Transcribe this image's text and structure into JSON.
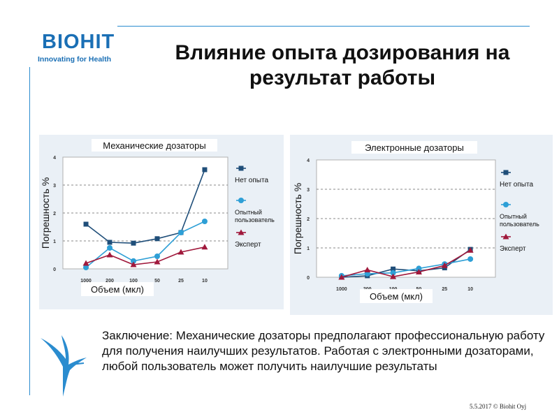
{
  "logo": {
    "name": "BIOHIT",
    "tagline": "Innovating for Health"
  },
  "slide": {
    "title": "Влияние опыта дозирования на результат работы",
    "conclusion": "Заключение: Механические дозаторы предполагают профессиональную работу для получения наилучших результатов. Работая с электронными дозаторами, любой пользователь может получить наилучшие результаты",
    "footer": "5.5.2017 © Biohit Oyj"
  },
  "colors": {
    "accent": "#2a8ccf",
    "series_dark": "#1f4e79",
    "series_light": "#2e9fd6",
    "series_red": "#a0193c",
    "panel": "#eaf0f6"
  },
  "chart_data": [
    {
      "type": "line",
      "title": "Механические дозаторы",
      "xlabel": "Объем (мкл)",
      "ylabel": "Погрешность %",
      "categories": [
        "1000",
        "200",
        "100",
        "50",
        "25",
        "10"
      ],
      "ylim": [
        0,
        4
      ],
      "yticks": [
        "0",
        "1",
        "2",
        "3",
        "4"
      ],
      "grid": "dashed",
      "series": [
        {
          "name": "Нет опыта",
          "marker": "square",
          "values": [
            1.6,
            0.95,
            0.92,
            1.08,
            1.3,
            3.55
          ]
        },
        {
          "name": "Опытный пользователь",
          "marker": "circle",
          "values": [
            0.05,
            0.75,
            0.28,
            0.45,
            1.3,
            1.7
          ]
        },
        {
          "name": "Эксперт",
          "marker": "triangle",
          "values": [
            0.2,
            0.5,
            0.15,
            0.25,
            0.6,
            0.78
          ]
        }
      ]
    },
    {
      "type": "line",
      "title": "Электронные дозаторы",
      "xlabel": "Объем (мкл)",
      "ylabel": "Погрешность %",
      "categories": [
        "1000",
        "200",
        "100",
        "50",
        "25",
        "10"
      ],
      "ylim": [
        0,
        4
      ],
      "yticks": [
        "0",
        "1",
        "2",
        "3",
        "4"
      ],
      "grid": "dashed",
      "series": [
        {
          "name": "Нет опыта",
          "marker": "square",
          "values": [
            0.0,
            0.05,
            0.28,
            0.22,
            0.32,
            0.95
          ]
        },
        {
          "name": "Опытный пользователь",
          "marker": "circle",
          "values": [
            0.05,
            0.12,
            0.15,
            0.3,
            0.45,
            0.62
          ]
        },
        {
          "name": "Эксперт",
          "marker": "triangle",
          "values": [
            0.0,
            0.25,
            0.02,
            0.18,
            0.4,
            0.92
          ]
        }
      ]
    }
  ]
}
